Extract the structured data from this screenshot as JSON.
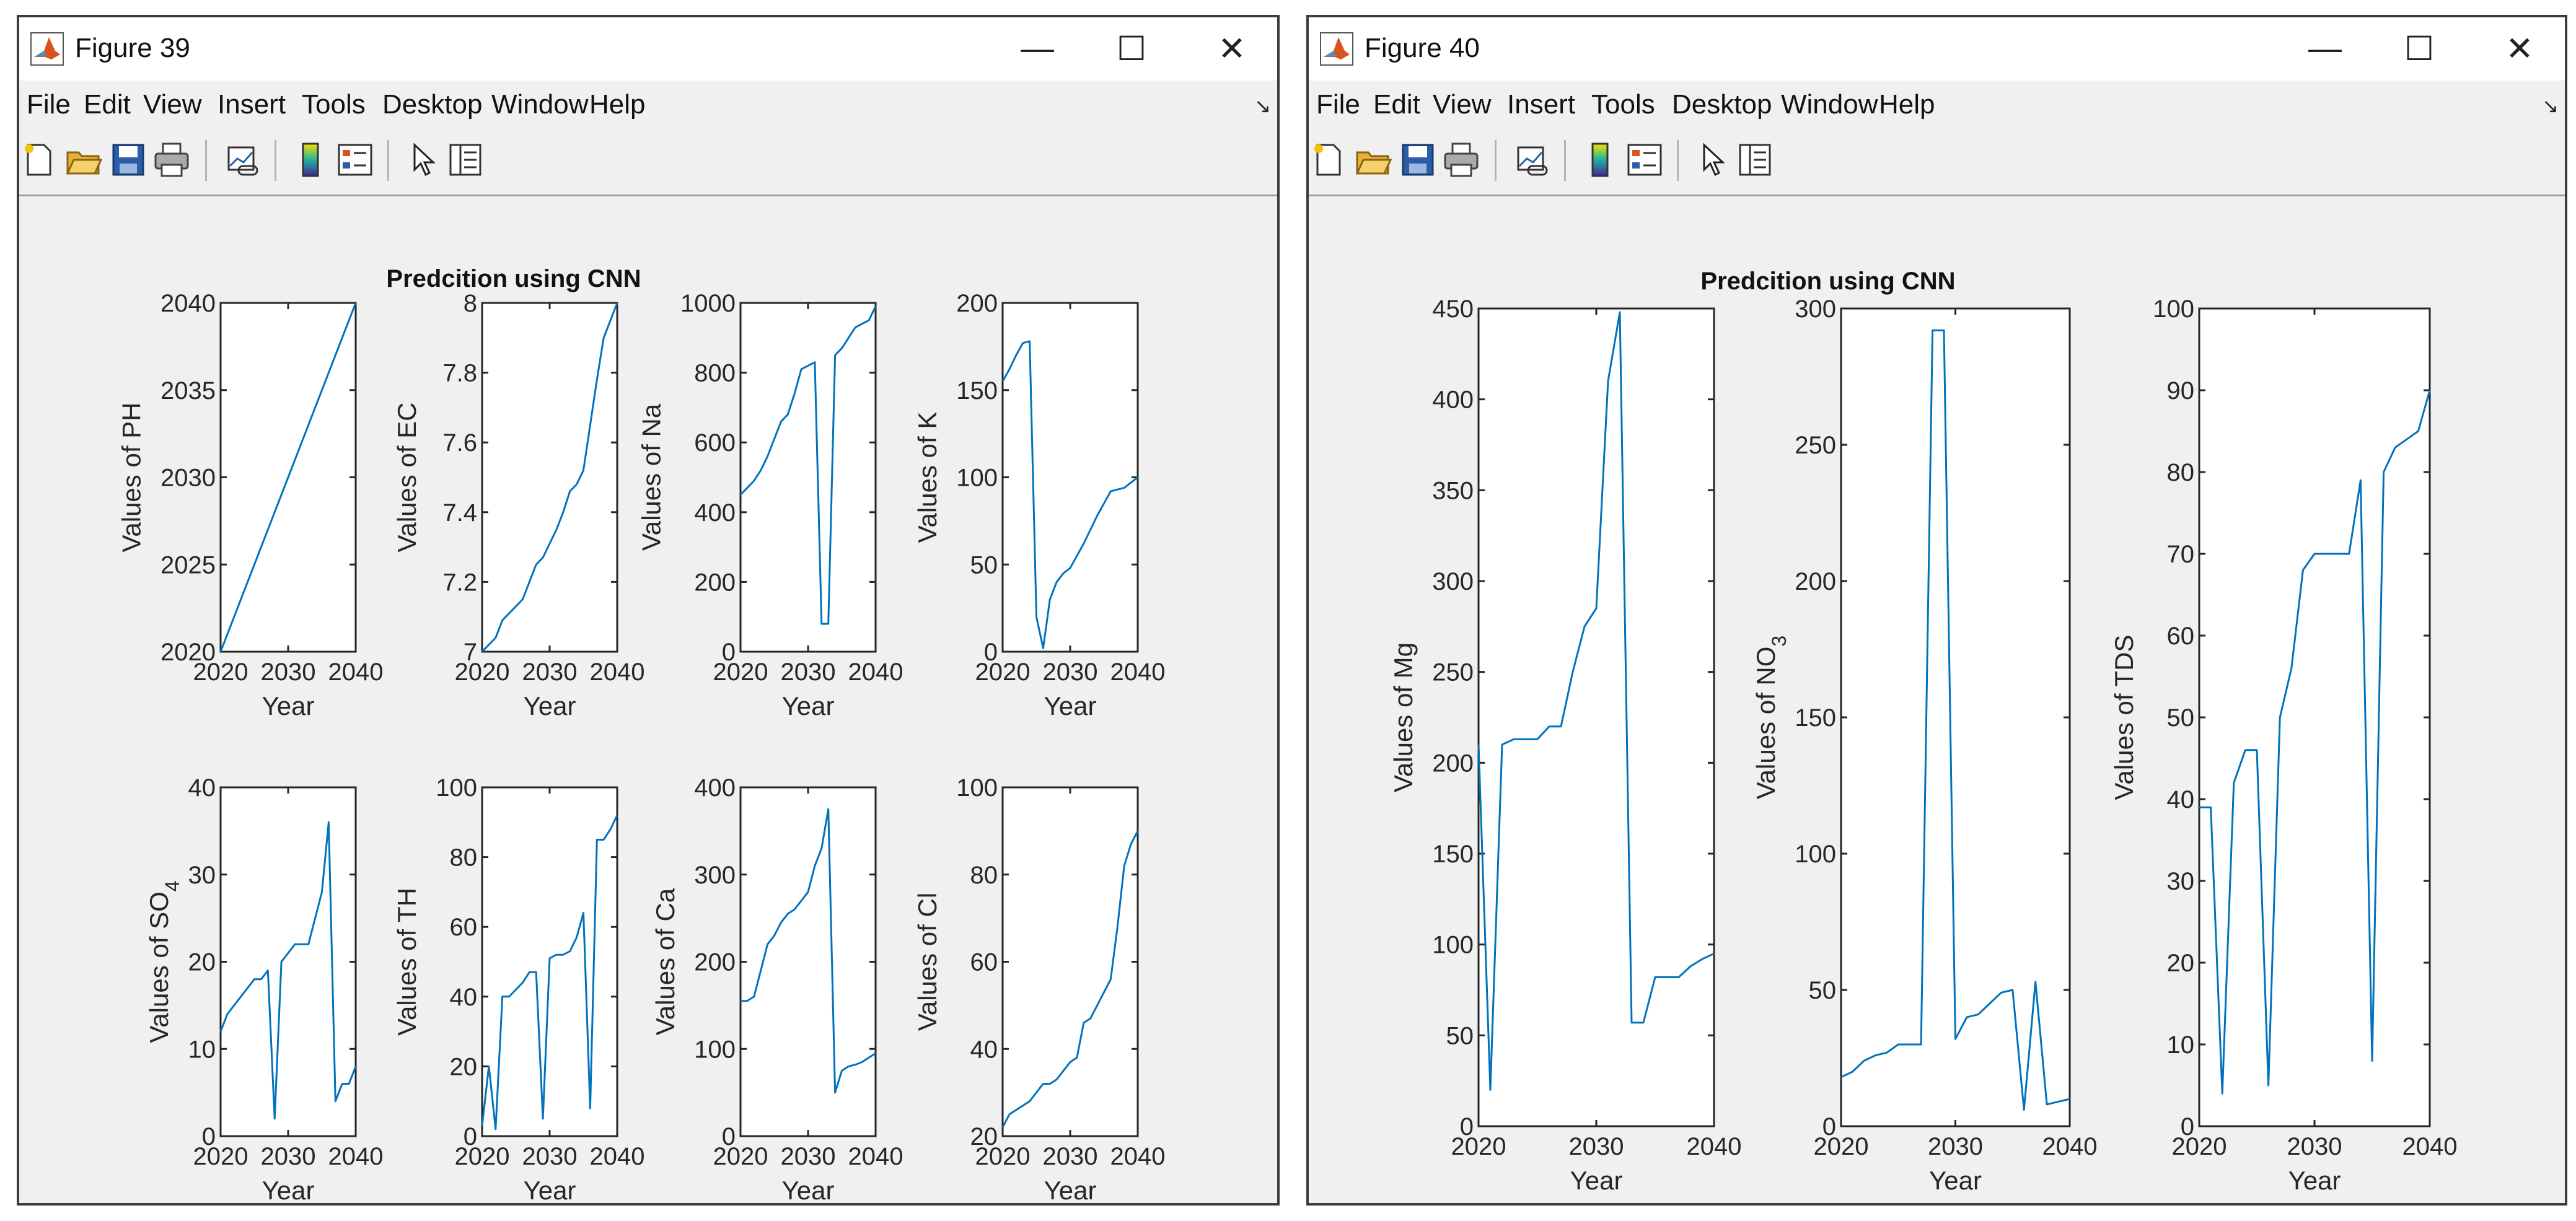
{
  "windows": [
    {
      "title": "Figure 39",
      "menu": [
        "File",
        "Edit",
        "View",
        "Insert",
        "Tools",
        "Desktop",
        "Window",
        "Help"
      ],
      "suptitle": "Predcition  using CNN"
    },
    {
      "title": "Figure 40",
      "menu": [
        "File",
        "Edit",
        "View",
        "Insert",
        "Tools",
        "Desktop",
        "Window",
        "Help"
      ],
      "suptitle": "Predcition  using CNN"
    }
  ],
  "colors": {
    "line": "#0072BD",
    "figure_bg": "#f0f0f0",
    "axes_bg": "#ffffff"
  },
  "icons": [
    "matlab-logo-icon",
    "minimize-icon",
    "maximize-icon",
    "close-icon",
    "dock-arrow-icon",
    "new-figure-icon",
    "open-file-icon",
    "save-icon",
    "print-icon",
    "link-plot-icon",
    "colorbar-icon",
    "legend-icon",
    "pointer-icon",
    "property-inspector-icon"
  ],
  "chart_data": [
    {
      "figure": "Figure 39",
      "type": "line",
      "xlabel": "Year",
      "ylabel": "Values of PH",
      "xlim": [
        2020,
        2040
      ],
      "xticks": [
        2020,
        2030,
        2040
      ],
      "ylim": [
        2020,
        2040
      ],
      "yticks": [
        2020,
        2025,
        2030,
        2035,
        2040
      ],
      "x": [
        2020,
        2040
      ],
      "y": [
        2020,
        2040
      ]
    },
    {
      "figure": "Figure 39",
      "type": "line",
      "xlabel": "Year",
      "ylabel": "Values of EC",
      "xlim": [
        2020,
        2040
      ],
      "xticks": [
        2020,
        2030,
        2040
      ],
      "ylim": [
        7,
        8
      ],
      "yticks": [
        7,
        7.2,
        7.4,
        7.6,
        7.8,
        8
      ],
      "x": [
        2020,
        2021,
        2022,
        2023,
        2024,
        2025,
        2026,
        2027,
        2028,
        2029,
        2030,
        2031,
        2032,
        2033,
        2034,
        2035,
        2036,
        2037,
        2038,
        2039,
        2040
      ],
      "y": [
        7.0,
        7.02,
        7.04,
        7.09,
        7.11,
        7.13,
        7.15,
        7.2,
        7.25,
        7.27,
        7.31,
        7.35,
        7.4,
        7.46,
        7.48,
        7.52,
        7.65,
        7.78,
        7.9,
        7.95,
        8.0
      ]
    },
    {
      "figure": "Figure 39",
      "type": "line",
      "xlabel": "Year",
      "ylabel": "Values of Na",
      "xlim": [
        2020,
        2040
      ],
      "xticks": [
        2020,
        2030,
        2040
      ],
      "ylim": [
        0,
        1000
      ],
      "yticks": [
        0,
        200,
        400,
        600,
        800,
        1000
      ],
      "x": [
        2020,
        2021,
        2022,
        2023,
        2024,
        2025,
        2026,
        2027,
        2028,
        2029,
        2030,
        2031,
        2032,
        2033,
        2034,
        2035,
        2036,
        2037,
        2038,
        2039,
        2040
      ],
      "y": [
        450,
        470,
        490,
        520,
        560,
        610,
        660,
        680,
        740,
        810,
        820,
        830,
        80,
        80,
        850,
        870,
        900,
        930,
        940,
        950,
        990
      ]
    },
    {
      "figure": "Figure 39",
      "type": "line",
      "xlabel": "Year",
      "ylabel": "Values of K",
      "xlim": [
        2020,
        2040
      ],
      "xticks": [
        2020,
        2030,
        2040
      ],
      "ylim": [
        0,
        200
      ],
      "yticks": [
        0,
        50,
        100,
        150,
        200
      ],
      "x": [
        2020,
        2021,
        2022,
        2023,
        2024,
        2025,
        2026,
        2027,
        2028,
        2029,
        2030,
        2031,
        2032,
        2033,
        2034,
        2035,
        2036,
        2037,
        2038,
        2039,
        2040
      ],
      "y": [
        155,
        162,
        170,
        177,
        178,
        20,
        2,
        30,
        40,
        45,
        48,
        55,
        62,
        70,
        78,
        85,
        92,
        93,
        94,
        97,
        100
      ]
    },
    {
      "figure": "Figure 39",
      "type": "line",
      "xlabel": "Year",
      "ylabel": "Values of  SO4",
      "xlim": [
        2020,
        2040
      ],
      "xticks": [
        2020,
        2030,
        2040
      ],
      "ylim": [
        0,
        40
      ],
      "yticks": [
        0,
        10,
        20,
        30,
        40
      ],
      "x": [
        2020,
        2021,
        2022,
        2023,
        2024,
        2025,
        2026,
        2027,
        2028,
        2029,
        2030,
        2031,
        2032,
        2033,
        2034,
        2035,
        2036,
        2037,
        2038,
        2039,
        2040
      ],
      "y": [
        12,
        14,
        15,
        16,
        17,
        18,
        18,
        19,
        2,
        20,
        21,
        22,
        22,
        22,
        25,
        28,
        36,
        4,
        6,
        6,
        8
      ]
    },
    {
      "figure": "Figure 39",
      "type": "line",
      "xlabel": "Year",
      "ylabel": "Values of TH",
      "xlim": [
        2020,
        2040
      ],
      "xticks": [
        2020,
        2030,
        2040
      ],
      "ylim": [
        0,
        100
      ],
      "yticks": [
        0,
        20,
        40,
        60,
        80,
        100
      ],
      "x": [
        2020,
        2021,
        2022,
        2023,
        2024,
        2025,
        2026,
        2027,
        2028,
        2029,
        2030,
        2031,
        2032,
        2033,
        2034,
        2035,
        2036,
        2037,
        2038,
        2039,
        2040
      ],
      "y": [
        3,
        20,
        2,
        40,
        40,
        42,
        44,
        47,
        47,
        5,
        51,
        52,
        52,
        53,
        57,
        64,
        8,
        85,
        85,
        88,
        92
      ]
    },
    {
      "figure": "Figure 39",
      "type": "line",
      "xlabel": "Year",
      "ylabel": "Values of Ca",
      "xlim": [
        2020,
        2040
      ],
      "xticks": [
        2020,
        2030,
        2040
      ],
      "ylim": [
        0,
        400
      ],
      "yticks": [
        0,
        100,
        200,
        300,
        400
      ],
      "x": [
        2020,
        2021,
        2022,
        2023,
        2024,
        2025,
        2026,
        2027,
        2028,
        2029,
        2030,
        2031,
        2032,
        2033,
        2034,
        2035,
        2036,
        2037,
        2038,
        2039,
        2040
      ],
      "y": [
        155,
        155,
        160,
        190,
        220,
        230,
        245,
        255,
        260,
        270,
        280,
        310,
        330,
        375,
        50,
        75,
        80,
        82,
        85,
        90,
        95
      ]
    },
    {
      "figure": "Figure 39",
      "type": "line",
      "xlabel": "Year",
      "ylabel": "Values of Cl",
      "xlim": [
        2020,
        2040
      ],
      "xticks": [
        2020,
        2030,
        2040
      ],
      "ylim": [
        20,
        100
      ],
      "yticks": [
        20,
        40,
        60,
        80,
        100
      ],
      "x": [
        2020,
        2021,
        2022,
        2023,
        2024,
        2025,
        2026,
        2027,
        2028,
        2029,
        2030,
        2031,
        2032,
        2033,
        2034,
        2035,
        2036,
        2037,
        2038,
        2039,
        2040
      ],
      "y": [
        22,
        25,
        26,
        27,
        28,
        30,
        32,
        32,
        33,
        35,
        37,
        38,
        46,
        47,
        50,
        53,
        56,
        68,
        82,
        87,
        90
      ]
    },
    {
      "figure": "Figure 40",
      "type": "line",
      "xlabel": "Year",
      "ylabel": "Values of Mg",
      "xlim": [
        2020,
        2040
      ],
      "xticks": [
        2020,
        2030,
        2040
      ],
      "ylim": [
        0,
        450
      ],
      "yticks": [
        0,
        50,
        100,
        150,
        200,
        250,
        300,
        350,
        400,
        450
      ],
      "x": [
        2020,
        2021,
        2022,
        2023,
        2024,
        2025,
        2026,
        2027,
        2028,
        2029,
        2030,
        2031,
        2032,
        2033,
        2034,
        2035,
        2036,
        2037,
        2038,
        2039,
        2040
      ],
      "y": [
        210,
        20,
        210,
        213,
        213,
        213,
        220,
        220,
        250,
        275,
        285,
        410,
        448,
        57,
        57,
        82,
        82,
        82,
        88,
        92,
        95
      ]
    },
    {
      "figure": "Figure 40",
      "type": "line",
      "xlabel": "Year",
      "ylabel": "Values of  NO3",
      "xlim": [
        2020,
        2040
      ],
      "xticks": [
        2020,
        2030,
        2040
      ],
      "ylim": [
        0,
        300
      ],
      "yticks": [
        0,
        50,
        100,
        150,
        200,
        250,
        300
      ],
      "x": [
        2020,
        2021,
        2022,
        2023,
        2024,
        2025,
        2026,
        2027,
        2028,
        2029,
        2030,
        2031,
        2032,
        2033,
        2034,
        2035,
        2036,
        2037,
        2038,
        2039,
        2040
      ],
      "y": [
        18,
        20,
        24,
        26,
        27,
        30,
        30,
        30,
        292,
        292,
        32,
        40,
        41,
        45,
        49,
        50,
        6,
        53,
        8,
        9,
        10
      ]
    },
    {
      "figure": "Figure 40",
      "type": "line",
      "xlabel": "Year",
      "ylabel": "Values of TDS",
      "xlim": [
        2020,
        2040
      ],
      "xticks": [
        2020,
        2030,
        2040
      ],
      "ylim": [
        0,
        100
      ],
      "yticks": [
        0,
        10,
        20,
        30,
        40,
        50,
        60,
        70,
        80,
        90,
        100
      ],
      "x": [
        2020,
        2021,
        2022,
        2023,
        2024,
        2025,
        2026,
        2027,
        2028,
        2029,
        2030,
        2031,
        2032,
        2033,
        2034,
        2035,
        2036,
        2037,
        2038,
        2039,
        2040
      ],
      "y": [
        39,
        39,
        4,
        42,
        46,
        46,
        5,
        50,
        56,
        68,
        70,
        70,
        70,
        70,
        79,
        8,
        80,
        83,
        84,
        85,
        90
      ]
    }
  ]
}
